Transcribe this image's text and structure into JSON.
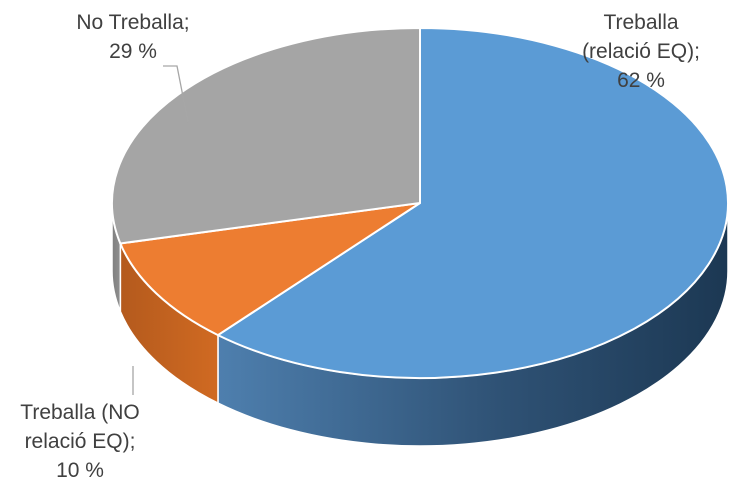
{
  "chart_data": {
    "type": "pie",
    "style": "3d",
    "slices": [
      {
        "label": "Treballa (relació EQ)",
        "value": 62,
        "color": "#5b9bd5"
      },
      {
        "label": "Treballa (NO relació EQ)",
        "value": 10,
        "color": "#ed7d31"
      },
      {
        "label": "No Treballa",
        "value": 29,
        "color": "#a5a5a5"
      }
    ],
    "data_labels": [
      {
        "lines": [
          "Treballa",
          "(relació EQ);",
          "62 %"
        ]
      },
      {
        "lines": [
          "Treballa (NO",
          "relació EQ);",
          "10 %"
        ]
      },
      {
        "lines": [
          "No Treballa;",
          "29 %"
        ]
      }
    ],
    "legend": "none",
    "title": ""
  }
}
